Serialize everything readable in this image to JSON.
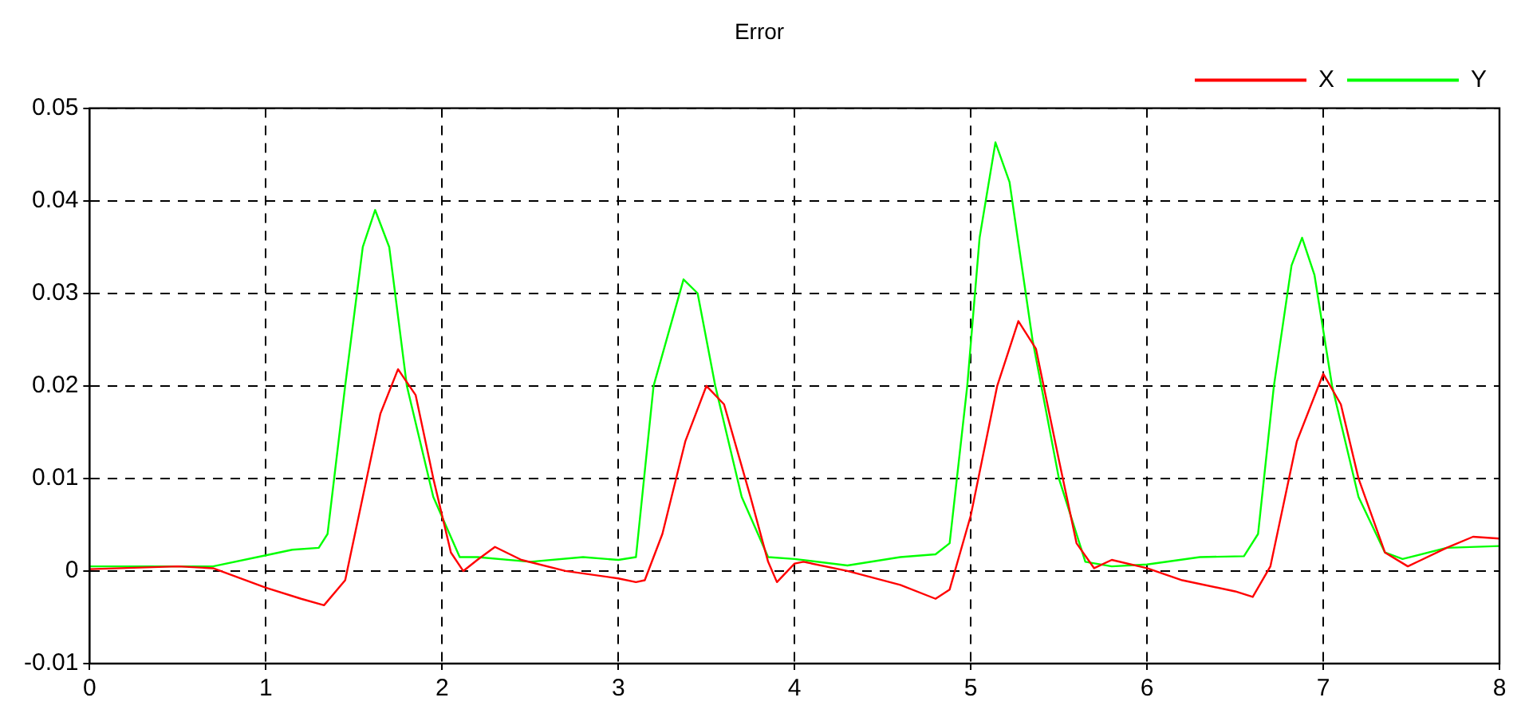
{
  "chart_data": {
    "type": "line",
    "title": "Error",
    "xlim": [
      0,
      8
    ],
    "xticks": [
      0,
      1,
      2,
      3,
      4,
      5,
      6,
      7,
      8
    ],
    "ylim": [
      -0.01,
      0.05
    ],
    "yticks": [
      -0.01,
      0,
      0.01,
      0.02,
      0.03,
      0.04,
      0.05
    ],
    "grid": true,
    "legend": "top right",
    "marker": "none",
    "line_style": "solid",
    "series": [
      {
        "name": "X",
        "color": "#ff0000",
        "x": [
          0,
          0.5,
          0.7,
          1.0,
          1.2,
          1.33,
          1.45,
          1.55,
          1.65,
          1.75,
          1.85,
          1.95,
          2.05,
          2.12,
          2.2,
          2.3,
          2.45,
          2.7,
          3.0,
          3.1,
          3.15,
          3.25,
          3.38,
          3.5,
          3.6,
          3.75,
          3.85,
          3.9,
          4.0,
          4.05,
          4.3,
          4.6,
          4.8,
          4.88,
          5.0,
          5.15,
          5.27,
          5.37,
          5.5,
          5.6,
          5.7,
          5.8,
          6.0,
          6.2,
          6.5,
          6.6,
          6.7,
          6.85,
          7.0,
          7.1,
          7.2,
          7.35,
          7.48,
          7.7,
          7.85,
          8.0
        ],
        "values": [
          0.0002,
          0.0005,
          0.0003,
          -0.0018,
          -0.003,
          -0.0037,
          -0.001,
          0.008,
          0.017,
          0.0218,
          0.019,
          0.01,
          0.002,
          0,
          0.0012,
          0.0026,
          0.0012,
          0,
          -0.0008,
          -0.0012,
          -0.001,
          0.004,
          0.014,
          0.02,
          0.018,
          0.008,
          0.001,
          -0.0012,
          0.0008,
          0.001,
          0,
          -0.0015,
          -0.003,
          -0.002,
          0.006,
          0.02,
          0.027,
          0.024,
          0.012,
          0.003,
          0.0003,
          0.0012,
          0.0003,
          -0.001,
          -0.0022,
          -0.0028,
          0.0005,
          0.014,
          0.0213,
          0.018,
          0.01,
          0.002,
          0.0005,
          0.0025,
          0.0037,
          0.0035
        ]
      },
      {
        "name": "Y",
        "color": "#00ff00",
        "x": [
          0,
          0.7,
          1.0,
          1.15,
          1.3,
          1.35,
          1.45,
          1.55,
          1.62,
          1.7,
          1.8,
          1.95,
          2.1,
          2.2,
          2.5,
          2.8,
          3.0,
          3.1,
          3.2,
          3.37,
          3.45,
          3.55,
          3.7,
          3.85,
          4.0,
          4.3,
          4.6,
          4.8,
          4.88,
          4.98,
          5.05,
          5.14,
          5.22,
          5.35,
          5.5,
          5.65,
          5.8,
          6.0,
          6.3,
          6.55,
          6.63,
          6.72,
          6.82,
          6.88,
          6.95,
          7.05,
          7.2,
          7.35,
          7.45,
          7.7,
          8.0
        ],
        "values": [
          0.0005,
          0.0005,
          0.0017,
          0.0023,
          0.0025,
          0.004,
          0.02,
          0.035,
          0.039,
          0.035,
          0.02,
          0.008,
          0.0015,
          0.0015,
          0.001,
          0.0015,
          0.0012,
          0.0015,
          0.02,
          0.0315,
          0.03,
          0.02,
          0.008,
          0.0015,
          0.0013,
          0.0006,
          0.0015,
          0.0018,
          0.003,
          0.02,
          0.036,
          0.0463,
          0.042,
          0.025,
          0.01,
          0.001,
          0.0005,
          0.0007,
          0.0015,
          0.0016,
          0.004,
          0.02,
          0.033,
          0.036,
          0.032,
          0.02,
          0.008,
          0.002,
          0.0013,
          0.0025,
          0.0027
        ]
      }
    ]
  }
}
